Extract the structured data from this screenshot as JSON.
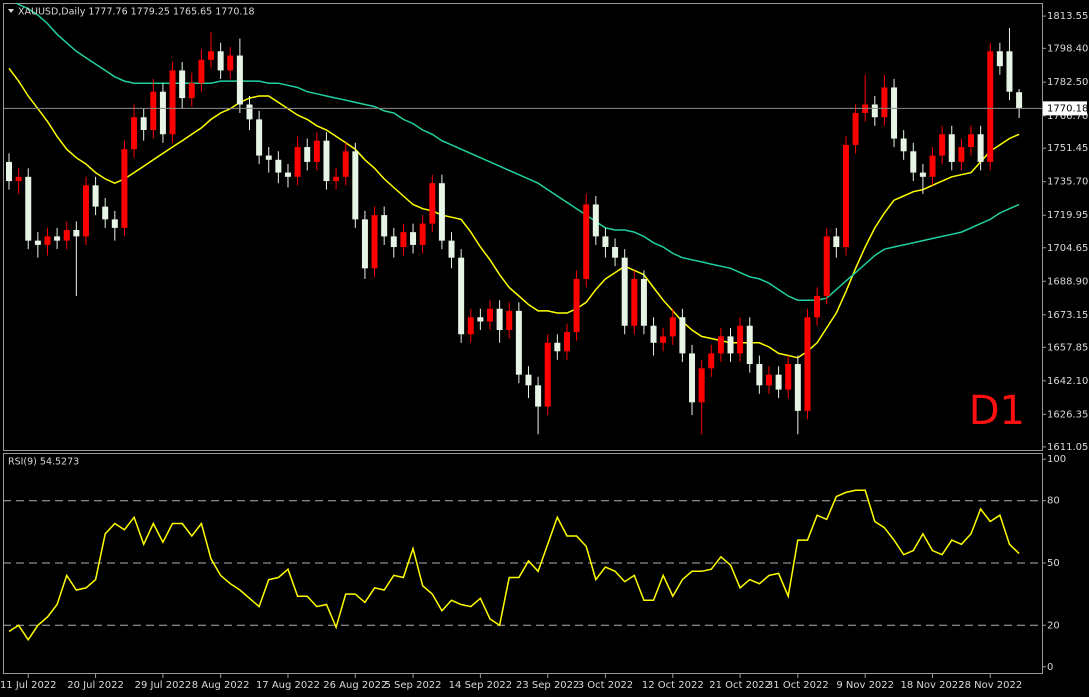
{
  "chart_data": [
    {
      "type": "candlestick",
      "title": "XAUUSD,Daily  1777.76 1779.25 1765.65 1770.18",
      "annotation": "D1",
      "categories": [
        null,
        null,
        "11 Jul 2022",
        null,
        null,
        null,
        null,
        null,
        null,
        "20 Jul 2022",
        null,
        null,
        null,
        null,
        null,
        null,
        "29 Jul 2022",
        null,
        null,
        null,
        null,
        null,
        "8 Aug 2022",
        null,
        null,
        null,
        null,
        null,
        null,
        "17 Aug 2022",
        null,
        null,
        null,
        null,
        null,
        null,
        "26 Aug 2022",
        null,
        null,
        null,
        null,
        null,
        "5 Sep 2022",
        null,
        null,
        null,
        null,
        null,
        null,
        "14 Sep 2022",
        null,
        null,
        null,
        null,
        null,
        null,
        "23 Sep 2022",
        null,
        null,
        null,
        null,
        null,
        "3 Oct 2022",
        null,
        null,
        null,
        null,
        null,
        null,
        "12 Oct 2022",
        null,
        null,
        null,
        null,
        null,
        null,
        "21 Oct 2022",
        null,
        null,
        null,
        null,
        null,
        "31 Oct 2022",
        null,
        null,
        null,
        null,
        null,
        null,
        "9 Nov 2022",
        null,
        null,
        null,
        null,
        null,
        null,
        "18 Nov 2022",
        null,
        null,
        null,
        null,
        null,
        "28 Nov 2022",
        null,
        null,
        null
      ],
      "open": [
        1745,
        1736,
        1738,
        1708,
        1706,
        1710,
        1708,
        1713,
        1710,
        1734,
        1724,
        1718,
        1714,
        1751,
        1766,
        1760,
        1778,
        1758,
        1788,
        1775,
        1782,
        1793,
        1797,
        1788,
        1795,
        1772,
        1765,
        1748,
        1746,
        1740,
        1738,
        1752,
        1745,
        1755,
        1736,
        1738,
        1750,
        1718,
        1695,
        1720,
        1710,
        1705,
        1712,
        1706,
        1716,
        1735,
        1708,
        1700,
        1664,
        1672,
        1670,
        1676,
        1666,
        1675,
        1645,
        1640,
        1630,
        1660,
        1656,
        1665,
        1690,
        1725,
        1710,
        1705,
        1700,
        1668,
        1690,
        1668,
        1660,
        1663,
        1672,
        1655,
        1632,
        1648,
        1655,
        1663,
        1655,
        1668,
        1650,
        1640,
        1645,
        1638,
        1650,
        1628,
        1672,
        1682,
        1710,
        1705,
        1753,
        1768,
        1772,
        1766,
        1780,
        1756,
        1750,
        1740,
        1738,
        1748,
        1758,
        1745,
        1752,
        1758,
        1745,
        1797,
        1797,
        1777.76
      ],
      "high": [
        1749,
        1742,
        1742,
        1712,
        1714,
        1714,
        1717,
        1717,
        1738,
        1738,
        1728,
        1722,
        1755,
        1772,
        1770,
        1784,
        1782,
        1792,
        1792,
        1787,
        1798,
        1806,
        1801,
        1799,
        1803,
        1776,
        1769,
        1752,
        1750,
        1744,
        1757,
        1756,
        1759,
        1759,
        1742,
        1754,
        1754,
        1722,
        1724,
        1724,
        1714,
        1716,
        1716,
        1720,
        1739,
        1739,
        1712,
        1704,
        1676,
        1676,
        1680,
        1680,
        1679,
        1679,
        1649,
        1644,
        1664,
        1664,
        1669,
        1694,
        1730,
        1729,
        1714,
        1709,
        1704,
        1694,
        1694,
        1672,
        1667,
        1676,
        1676,
        1659,
        1652,
        1659,
        1667,
        1667,
        1672,
        1672,
        1654,
        1649,
        1649,
        1654,
        1654,
        1676,
        1686,
        1714,
        1714,
        1757,
        1772,
        1786,
        1776,
        1786,
        1784,
        1760,
        1754,
        1744,
        1752,
        1762,
        1762,
        1756,
        1762,
        1762,
        1801,
        1801,
        1808,
        1779.25
      ],
      "low": [
        1732,
        1730,
        1704,
        1700,
        1701,
        1704,
        1704,
        1682,
        1706,
        1720,
        1714,
        1708,
        1710,
        1747,
        1755,
        1756,
        1754,
        1754,
        1770,
        1771,
        1778,
        1789,
        1784,
        1784,
        1768,
        1760,
        1744,
        1740,
        1735,
        1733,
        1734,
        1741,
        1741,
        1732,
        1732,
        1734,
        1714,
        1690,
        1691,
        1706,
        1700,
        1701,
        1702,
        1702,
        1712,
        1704,
        1695,
        1660,
        1660,
        1666,
        1666,
        1660,
        1662,
        1641,
        1634,
        1617,
        1626,
        1652,
        1652,
        1661,
        1686,
        1706,
        1700,
        1696,
        1664,
        1664,
        1664,
        1654,
        1656,
        1659,
        1651,
        1626,
        1617,
        1644,
        1651,
        1651,
        1651,
        1646,
        1636,
        1636,
        1634,
        1634,
        1617,
        1624,
        1668,
        1678,
        1700,
        1701,
        1749,
        1764,
        1762,
        1762,
        1752,
        1746,
        1736,
        1730,
        1734,
        1744,
        1741,
        1741,
        1748,
        1741,
        1741,
        1786,
        1774,
        1765.65
      ],
      "close": [
        1736,
        1738,
        1708,
        1706,
        1710,
        1708,
        1713,
        1710,
        1734,
        1724,
        1718,
        1714,
        1751,
        1766,
        1760,
        1778,
        1758,
        1788,
        1775,
        1782,
        1793,
        1797,
        1788,
        1795,
        1772,
        1765,
        1748,
        1746,
        1740,
        1738,
        1752,
        1745,
        1755,
        1736,
        1738,
        1750,
        1718,
        1695,
        1720,
        1710,
        1705,
        1712,
        1706,
        1716,
        1735,
        1708,
        1700,
        1664,
        1672,
        1670,
        1676,
        1666,
        1675,
        1645,
        1640,
        1630,
        1660,
        1656,
        1665,
        1690,
        1725,
        1710,
        1705,
        1700,
        1668,
        1690,
        1668,
        1660,
        1663,
        1672,
        1655,
        1632,
        1648,
        1655,
        1663,
        1655,
        1668,
        1650,
        1640,
        1645,
        1638,
        1650,
        1628,
        1672,
        1682,
        1710,
        1705,
        1753,
        1768,
        1772,
        1766,
        1780,
        1756,
        1750,
        1740,
        1738,
        1748,
        1758,
        1745,
        1752,
        1758,
        1745,
        1797,
        1790,
        1778,
        1770.18
      ],
      "up_color": "#ff0000",
      "down_color": "#e6f5e6",
      "series": [
        {
          "color": "#ffff00",
          "values": [
            1789,
            1783,
            1776,
            1770,
            1764,
            1757,
            1751,
            1747,
            1744,
            1740,
            1737,
            1735,
            1737,
            1740,
            1743,
            1746,
            1749,
            1752,
            1755,
            1758,
            1761,
            1765,
            1768,
            1770,
            1773,
            1775,
            1776,
            1776,
            1773,
            1770,
            1767,
            1765,
            1762,
            1760,
            1757,
            1754,
            1751,
            1746,
            1742,
            1737,
            1733,
            1729,
            1725,
            1723,
            1722,
            1720,
            1719,
            1718,
            1712,
            1705,
            1699,
            1692,
            1686,
            1682,
            1678,
            1675,
            1675,
            1674,
            1674,
            1676,
            1679,
            1685,
            1690,
            1693,
            1696,
            1694,
            1692,
            1686,
            1680,
            1675,
            1670,
            1666,
            1663,
            1662,
            1661,
            1660,
            1660,
            1660,
            1660,
            1658,
            1655,
            1654,
            1653,
            1656,
            1660,
            1667,
            1674,
            1684,
            1695,
            1705,
            1714,
            1721,
            1727,
            1729,
            1731,
            1732,
            1734,
            1736,
            1738,
            1739,
            1740,
            1745,
            1750,
            1753,
            1756,
            1758
          ]
        },
        {
          "color": "#20d0a0",
          "values": [
            1822,
            1819,
            1817,
            1814,
            1810,
            1805,
            1801,
            1797,
            1794,
            1791,
            1788,
            1785,
            1783,
            1782,
            1782,
            1782,
            1782,
            1782,
            1782,
            1782,
            1782,
            1782,
            1783,
            1783,
            1783,
            1783,
            1783,
            1782,
            1782,
            1781,
            1780,
            1778,
            1777,
            1776,
            1775,
            1774,
            1773,
            1772,
            1771,
            1769,
            1768,
            1765,
            1763,
            1760,
            1758,
            1755,
            1753,
            1751,
            1749,
            1747,
            1745,
            1743,
            1741,
            1739,
            1737,
            1735,
            1732,
            1729,
            1726,
            1723,
            1720,
            1717,
            1714,
            1713,
            1713,
            1712,
            1710,
            1707,
            1705,
            1702,
            1700,
            1699,
            1698,
            1697,
            1696,
            1695,
            1693,
            1691,
            1690,
            1688,
            1685,
            1682,
            1680,
            1680,
            1680,
            1681,
            1685,
            1689,
            1693,
            1697,
            1701,
            1704,
            1705,
            1706,
            1707,
            1708,
            1709,
            1710,
            1711,
            1712,
            1714,
            1716,
            1718,
            1721,
            1723,
            1725
          ]
        }
      ],
      "ylim": [
        1609.6,
        1819.7
      ],
      "yticks": [
        1813.55,
        {
          "value": 1798.4,
          "label": "1798.40"
        },
        {
          "value": 1782.5,
          "label": "1782.50"
        },
        {
          "value": 1766.7,
          "label": "1766.70"
        },
        1751.45,
        {
          "value": 1735.7,
          "label": "1735.70"
        },
        1719.95,
        1704.65,
        {
          "value": 1688.9,
          "label": "1688.90"
        },
        1673.15,
        1657.85,
        {
          "value": 1642.1,
          "label": "1642.10"
        },
        1626.35,
        1611.05
      ]
    },
    {
      "type": "line",
      "title": "RSI(9) 54.5273",
      "color": "#ffff00",
      "values": [
        17,
        20,
        13,
        20,
        24,
        30,
        44,
        37,
        38,
        42,
        64,
        69,
        66,
        72,
        59,
        69,
        60,
        69,
        69,
        63,
        69,
        52,
        44,
        40,
        37,
        33,
        29,
        42,
        43,
        47,
        34,
        34,
        29,
        30,
        19,
        35,
        35,
        31,
        38,
        37,
        44,
        43,
        57,
        39,
        35,
        27,
        32,
        30,
        29,
        33,
        23,
        20,
        43,
        43,
        51,
        46,
        59,
        72,
        63,
        63,
        58,
        42,
        48,
        46,
        41,
        44,
        32,
        32,
        44,
        34,
        42,
        46,
        46,
        47,
        53,
        49,
        38,
        42,
        40,
        44,
        45,
        34,
        61,
        61,
        73,
        71,
        82,
        84,
        85,
        85,
        70,
        67,
        61,
        54,
        56,
        64,
        56,
        54,
        61,
        59,
        64,
        76,
        70,
        73,
        59,
        54.5273
      ],
      "ylim": [
        -3,
        102.5
      ],
      "yticks": [
        0,
        20,
        50,
        80,
        100
      ],
      "levels": [
        20,
        50,
        80
      ]
    }
  ]
}
